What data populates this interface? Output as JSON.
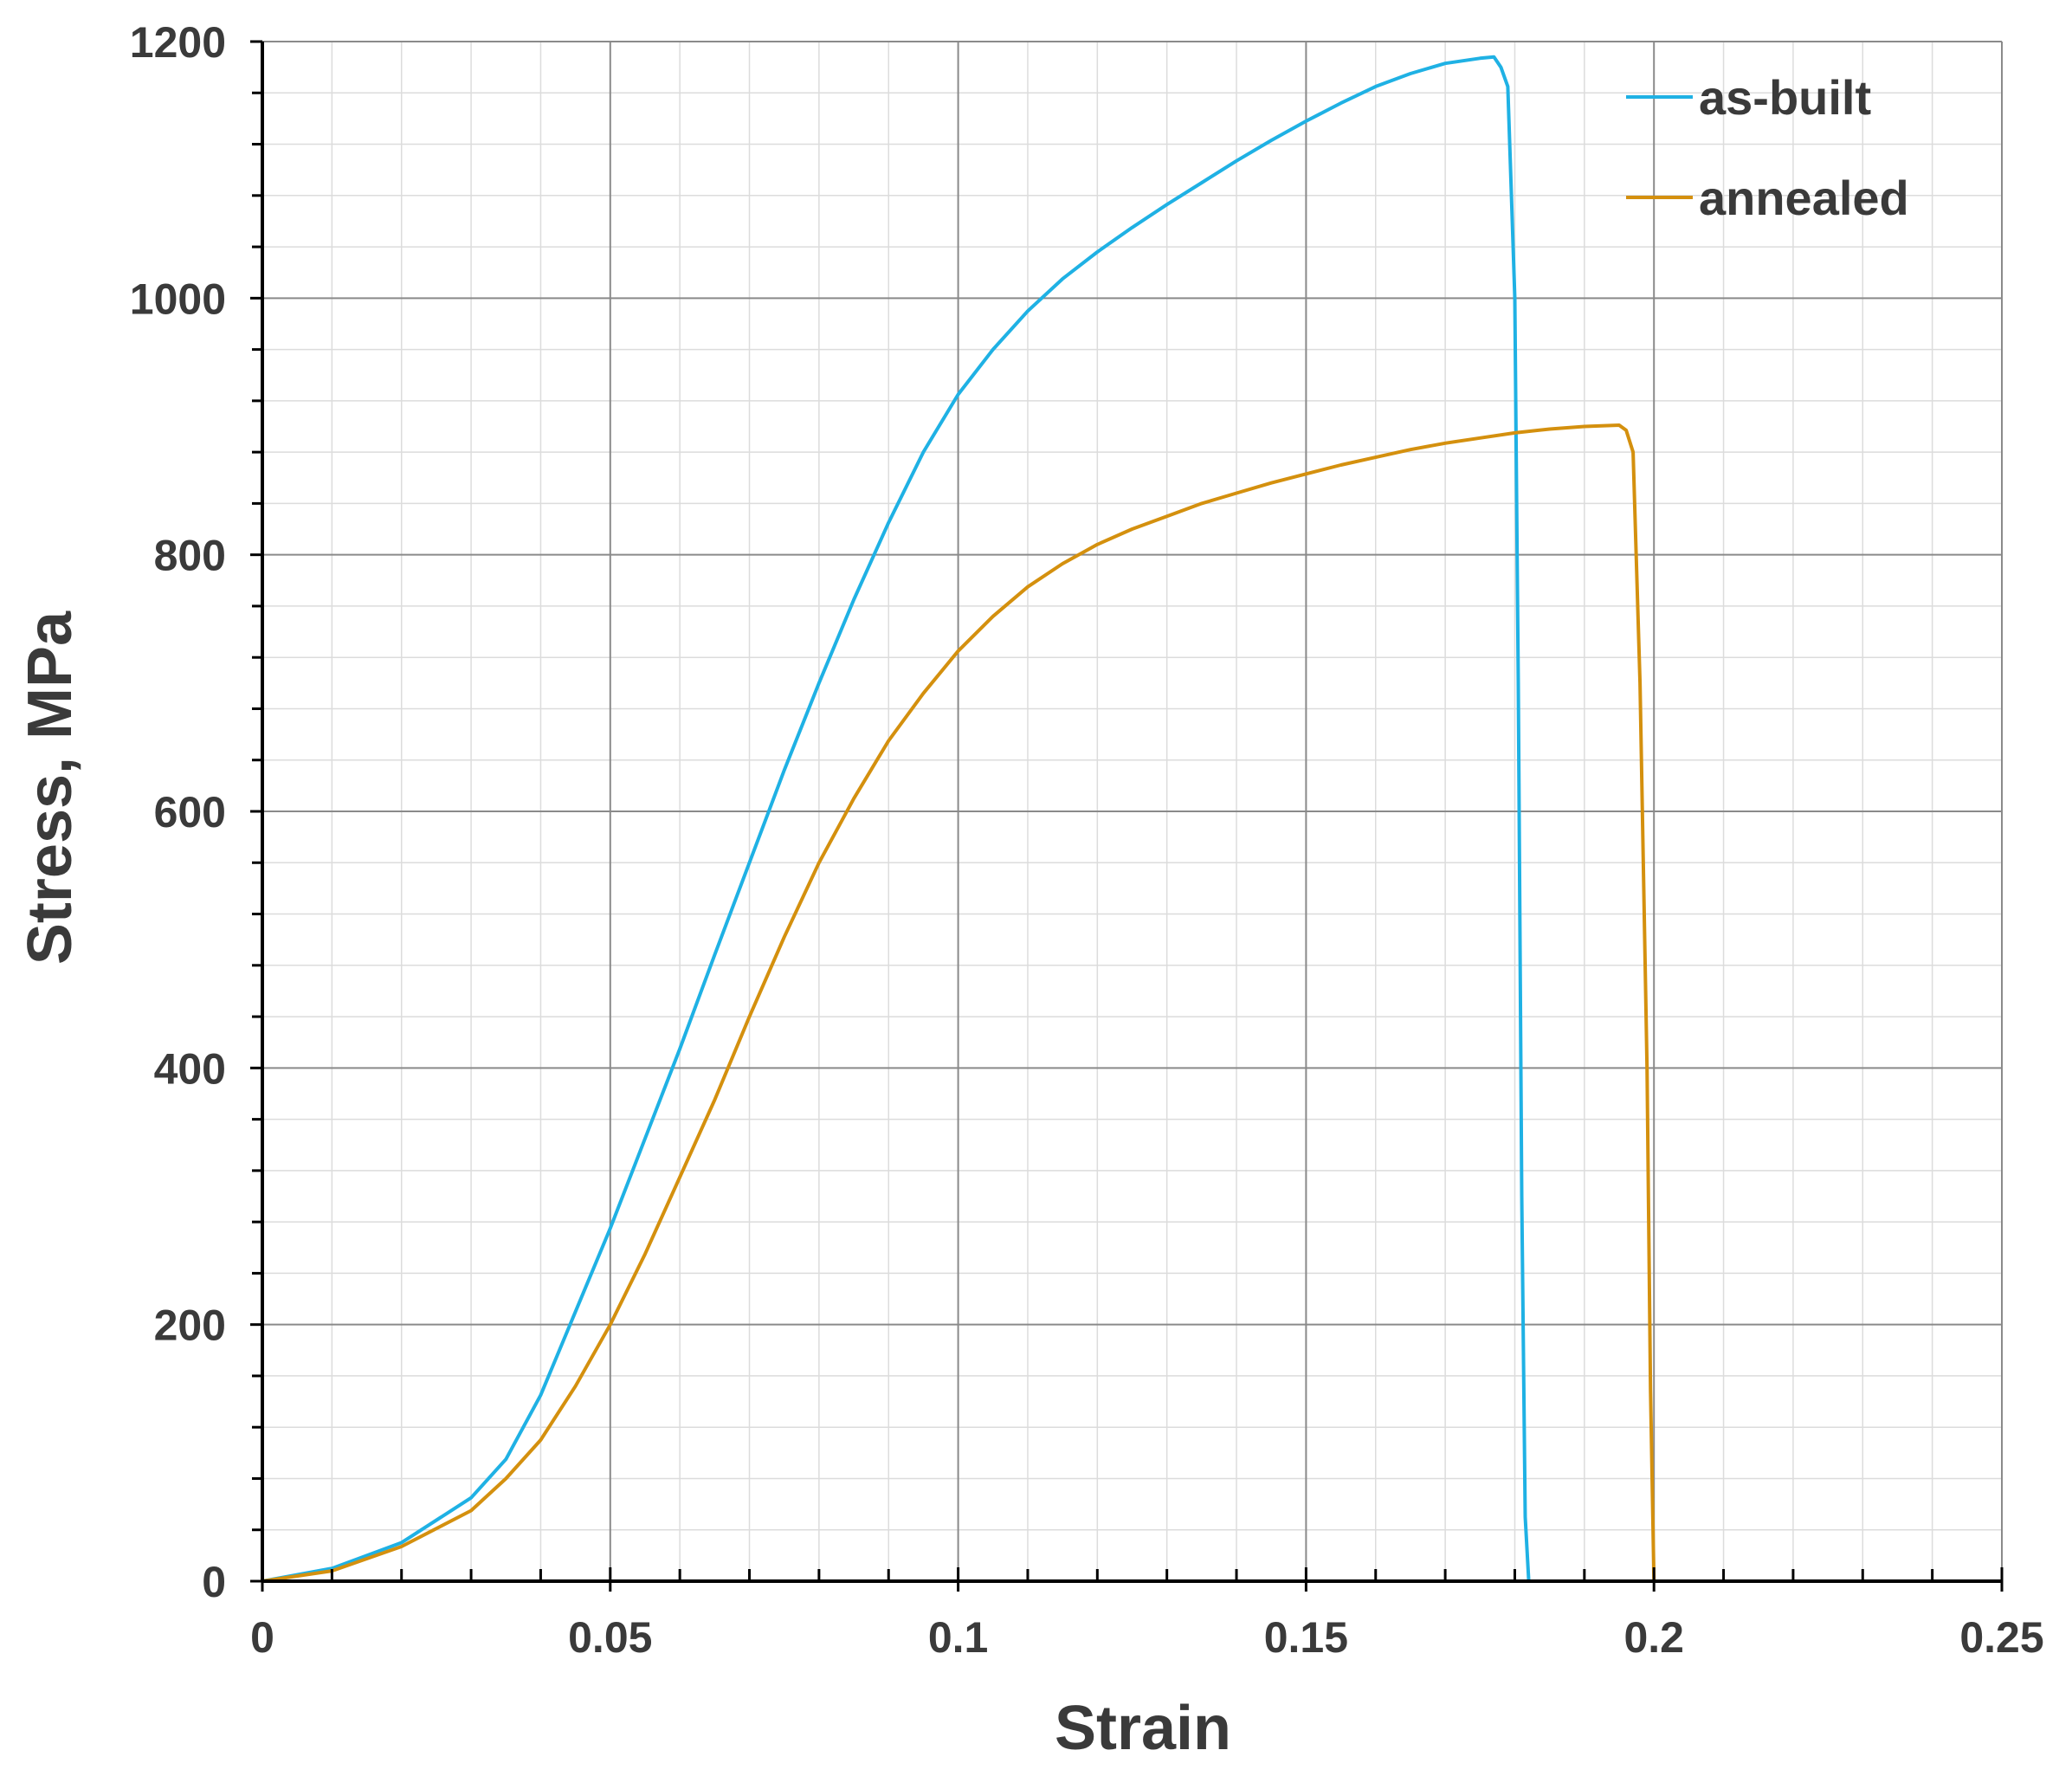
{
  "chart_data": {
    "type": "line",
    "xlabel": "Strain",
    "ylabel": "Stress, MPa",
    "xlim": [
      0,
      0.25
    ],
    "ylim": [
      0,
      1200
    ],
    "x_ticks": [
      0,
      0.05,
      0.1,
      0.15,
      0.2,
      0.25
    ],
    "x_tick_labels": [
      "0",
      "0.05",
      "0.1",
      "0.15",
      "0.2",
      "0.25"
    ],
    "y_ticks": [
      0,
      200,
      400,
      600,
      800,
      1000,
      1200
    ],
    "y_tick_labels": [
      "0",
      "200",
      "400",
      "600",
      "800",
      "1000",
      "1200"
    ],
    "grid": true,
    "minor_grid": true,
    "legend_position": "top-right",
    "series": [
      {
        "name": "as-built",
        "color": "#1fb1e4",
        "points": [
          [
            0,
            0
          ],
          [
            0.01,
            10
          ],
          [
            0.02,
            30
          ],
          [
            0.03,
            65
          ],
          [
            0.035,
            95
          ],
          [
            0.04,
            145
          ],
          [
            0.045,
            210
          ],
          [
            0.05,
            275
          ],
          [
            0.055,
            345
          ],
          [
            0.06,
            415
          ],
          [
            0.065,
            488
          ],
          [
            0.07,
            560
          ],
          [
            0.075,
            632
          ],
          [
            0.08,
            700
          ],
          [
            0.085,
            765
          ],
          [
            0.09,
            825
          ],
          [
            0.095,
            880
          ],
          [
            0.1,
            925
          ],
          [
            0.105,
            960
          ],
          [
            0.11,
            990
          ],
          [
            0.115,
            1015
          ],
          [
            0.12,
            1036
          ],
          [
            0.125,
            1055
          ],
          [
            0.13,
            1073
          ],
          [
            0.135,
            1090
          ],
          [
            0.14,
            1107
          ],
          [
            0.145,
            1123
          ],
          [
            0.15,
            1138
          ],
          [
            0.155,
            1152
          ],
          [
            0.16,
            1165
          ],
          [
            0.165,
            1175
          ],
          [
            0.17,
            1183
          ],
          [
            0.175,
            1187
          ],
          [
            0.177,
            1188
          ],
          [
            0.178,
            1180
          ],
          [
            0.179,
            1165
          ],
          [
            0.18,
            1000
          ],
          [
            0.1805,
            700
          ],
          [
            0.181,
            300
          ],
          [
            0.1815,
            50
          ],
          [
            0.182,
            0
          ],
          [
            0.184,
            0
          ]
        ]
      },
      {
        "name": "annealed",
        "color": "#d4900e",
        "points": [
          [
            0,
            0
          ],
          [
            0.01,
            8
          ],
          [
            0.02,
            27
          ],
          [
            0.03,
            55
          ],
          [
            0.035,
            80
          ],
          [
            0.04,
            110
          ],
          [
            0.045,
            152
          ],
          [
            0.05,
            200
          ],
          [
            0.055,
            255
          ],
          [
            0.06,
            315
          ],
          [
            0.065,
            375
          ],
          [
            0.07,
            440
          ],
          [
            0.075,
            502
          ],
          [
            0.08,
            560
          ],
          [
            0.085,
            610
          ],
          [
            0.09,
            655
          ],
          [
            0.095,
            692
          ],
          [
            0.1,
            725
          ],
          [
            0.105,
            752
          ],
          [
            0.11,
            775
          ],
          [
            0.115,
            793
          ],
          [
            0.12,
            808
          ],
          [
            0.125,
            820
          ],
          [
            0.13,
            830
          ],
          [
            0.135,
            840
          ],
          [
            0.14,
            848
          ],
          [
            0.145,
            856
          ],
          [
            0.15,
            863
          ],
          [
            0.155,
            870
          ],
          [
            0.16,
            876
          ],
          [
            0.165,
            882
          ],
          [
            0.17,
            887
          ],
          [
            0.175,
            891
          ],
          [
            0.18,
            895
          ],
          [
            0.185,
            898
          ],
          [
            0.19,
            900
          ],
          [
            0.195,
            901
          ],
          [
            0.196,
            897
          ],
          [
            0.197,
            880
          ],
          [
            0.198,
            700
          ],
          [
            0.199,
            400
          ],
          [
            0.1995,
            150
          ],
          [
            0.2,
            0
          ],
          [
            0.203,
            0
          ]
        ]
      }
    ]
  }
}
